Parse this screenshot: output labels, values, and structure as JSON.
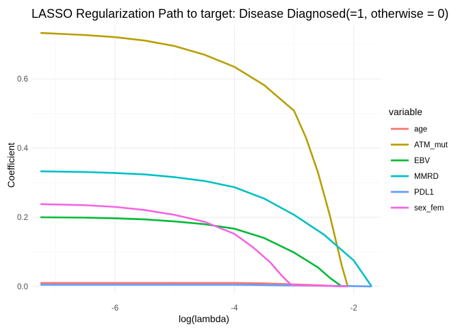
{
  "chart_data": {
    "type": "line",
    "title": "LASSO Regularization Path to target: Disease Diagnosed(=1, otherwise = 0)",
    "xlabel": "log(lambda)",
    "ylabel": "Coefficient",
    "xlim": [
      -7.4,
      -1.55
    ],
    "ylim": [
      -0.02,
      0.755
    ],
    "x_ticks": [
      -6,
      -4,
      -2
    ],
    "x_tick_labels": [
      "-6",
      "-4",
      "-2"
    ],
    "x_minor_ticks": [
      -7,
      -5,
      -3
    ],
    "y_ticks": [
      0.0,
      0.2,
      0.4,
      0.6
    ],
    "y_tick_labels": [
      "0.0",
      "0.2",
      "0.4",
      "0.6"
    ],
    "y_minor_ticks": [
      0.1,
      0.3,
      0.5,
      0.7
    ],
    "grid": true,
    "legend": {
      "title": "variable",
      "position": "right"
    },
    "series": [
      {
        "name": "age",
        "color": "#F8766D",
        "x": [
          -7.25,
          -6.0,
          -5.0,
          -4.0,
          -3.5,
          -3.0,
          -2.5,
          -2.2
        ],
        "y": [
          0.01,
          0.01,
          0.01,
          0.01,
          0.009,
          0.006,
          0.003,
          0.0
        ]
      },
      {
        "name": "ATM_mut",
        "color": "#B79F00",
        "x": [
          -7.25,
          -7.0,
          -6.5,
          -6.0,
          -5.5,
          -5.0,
          -4.5,
          -4.0,
          -3.5,
          -3.0,
          -2.8,
          -2.6,
          -2.4,
          -2.2,
          -2.1
        ],
        "y": [
          0.733,
          0.731,
          0.727,
          0.721,
          0.711,
          0.695,
          0.67,
          0.635,
          0.582,
          0.508,
          0.43,
          0.33,
          0.205,
          0.06,
          0.0
        ]
      },
      {
        "name": "EBV",
        "color": "#00BA38",
        "x": [
          -7.25,
          -6.5,
          -6.0,
          -5.5,
          -5.0,
          -4.5,
          -4.0,
          -3.5,
          -3.0,
          -2.6,
          -2.4,
          -2.2
        ],
        "y": [
          0.2,
          0.199,
          0.197,
          0.194,
          0.188,
          0.18,
          0.167,
          0.14,
          0.098,
          0.055,
          0.025,
          0.0
        ]
      },
      {
        "name": "MMRD",
        "color": "#00BFC4",
        "x": [
          -7.25,
          -6.5,
          -6.0,
          -5.5,
          -5.0,
          -4.5,
          -4.0,
          -3.5,
          -3.0,
          -2.5,
          -2.0,
          -1.7
        ],
        "y": [
          0.333,
          0.331,
          0.328,
          0.324,
          0.316,
          0.305,
          0.287,
          0.254,
          0.207,
          0.15,
          0.075,
          0.0
        ]
      },
      {
        "name": "PDL1",
        "color": "#619CFF",
        "x": [
          -7.25,
          -6.0,
          -5.0,
          -4.0,
          -3.5,
          -3.0,
          -2.5,
          -2.0,
          -1.7
        ],
        "y": [
          0.005,
          0.005,
          0.005,
          0.005,
          0.004,
          0.003,
          0.002,
          0.001,
          0.0
        ]
      },
      {
        "name": "sex_fem",
        "color": "#F564E3",
        "x": [
          -7.25,
          -6.5,
          -6.0,
          -5.5,
          -5.0,
          -4.5,
          -4.0,
          -3.7,
          -3.4,
          -3.2,
          -3.05,
          -2.95,
          -2.5,
          -2.1
        ],
        "y": [
          0.238,
          0.235,
          0.23,
          0.221,
          0.207,
          0.187,
          0.152,
          0.115,
          0.07,
          0.03,
          0.005,
          0.004,
          0.002,
          0.0
        ]
      }
    ]
  }
}
